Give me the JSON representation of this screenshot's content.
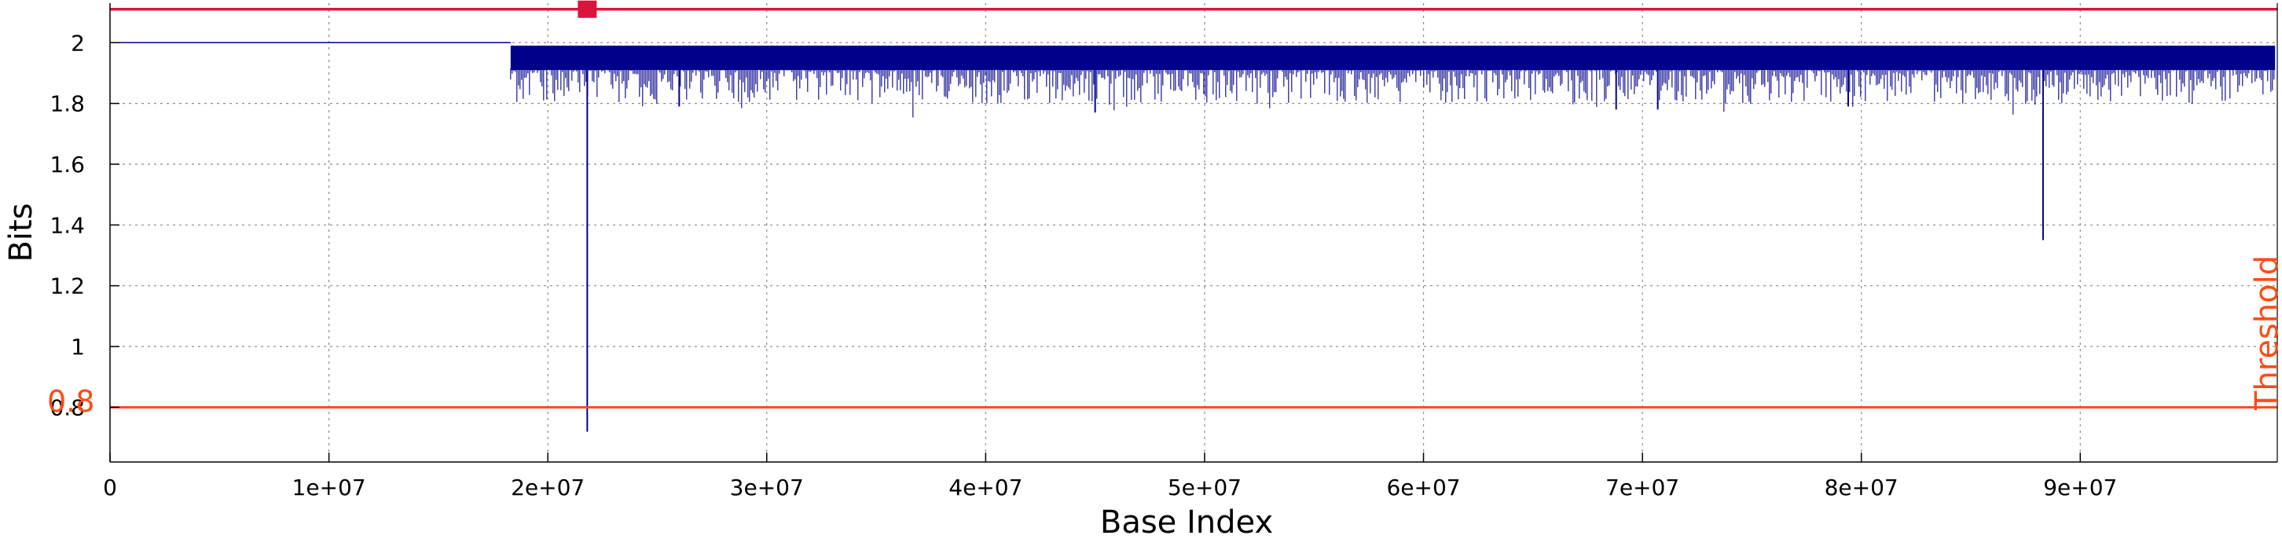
{
  "chart_data": {
    "type": "line",
    "xlabel": "Base Index",
    "ylabel": "Bits",
    "xlim": [
      0,
      99000000
    ],
    "ylim": [
      0.62,
      2.13
    ],
    "grid": true,
    "x_ticks": [
      {
        "value": 0,
        "label": "0"
      },
      {
        "value": 10000000,
        "label": "1e+07"
      },
      {
        "value": 20000000,
        "label": "2e+07"
      },
      {
        "value": 30000000,
        "label": "3e+07"
      },
      {
        "value": 40000000,
        "label": "4e+07"
      },
      {
        "value": 50000000,
        "label": "5e+07"
      },
      {
        "value": 60000000,
        "label": "6e+07"
      },
      {
        "value": 70000000,
        "label": "7e+07"
      },
      {
        "value": 80000000,
        "label": "8e+07"
      },
      {
        "value": 90000000,
        "label": "9e+07"
      }
    ],
    "y_ticks": [
      {
        "value": 0.8,
        "label": "0.8"
      },
      {
        "value": 1.0,
        "label": "1"
      },
      {
        "value": 1.2,
        "label": "1.2"
      },
      {
        "value": 1.4,
        "label": "1.4"
      },
      {
        "value": 1.6,
        "label": "1.6"
      },
      {
        "value": 1.8,
        "label": "1.8"
      },
      {
        "value": 2.0,
        "label": "2"
      }
    ],
    "series": [
      {
        "color": "#00008b",
        "style": "dense-line",
        "flat_segment": {
          "x_start": 0,
          "x_end": 18300000,
          "y": 2.0
        },
        "dense_band": {
          "x_start": 18300000,
          "x_end": 98900000,
          "y_top": 1.99,
          "y_body": 1.91,
          "y_dip_typical": 1.8
        },
        "notable_dips": [
          {
            "x": 21800000,
            "y": 0.72
          },
          {
            "x": 88300000,
            "y": 1.35
          },
          {
            "x": 45000000,
            "y": 1.77
          },
          {
            "x": 26000000,
            "y": 1.79
          },
          {
            "x": 68800000,
            "y": 1.78
          },
          {
            "x": 70700000,
            "y": 1.78
          },
          {
            "x": 79400000,
            "y": 1.79
          }
        ]
      }
    ],
    "threshold": {
      "value": 0.8,
      "value_label": "0.8",
      "label": "Threshold",
      "color": "#ff4b14"
    },
    "upper_line": {
      "y": 2.11,
      "color": "#dc143c"
    },
    "marker": {
      "x": 21800000,
      "y": 2.11,
      "color": "#dc143c",
      "shape": "square"
    }
  }
}
